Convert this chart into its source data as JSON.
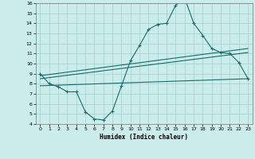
{
  "bg_color": "#caecea",
  "grid_color": "#aad4d0",
  "line_color": "#1a6b6b",
  "xlabel": "Humidex (Indice chaleur)",
  "xlim": [
    -0.5,
    23.5
  ],
  "ylim": [
    4,
    16
  ],
  "yticks": [
    4,
    5,
    6,
    7,
    8,
    9,
    10,
    11,
    12,
    13,
    14,
    15,
    16
  ],
  "xticks": [
    0,
    1,
    2,
    3,
    4,
    5,
    6,
    7,
    8,
    9,
    10,
    11,
    12,
    13,
    14,
    15,
    16,
    17,
    18,
    19,
    20,
    21,
    22,
    23
  ],
  "curve1_x": [
    0,
    1,
    2,
    3,
    4,
    5,
    6,
    7,
    8,
    9,
    10,
    11,
    12,
    13,
    14,
    15,
    16,
    17,
    18,
    19,
    20,
    21,
    22,
    23
  ],
  "curve1_y": [
    9.0,
    8.0,
    7.7,
    7.2,
    7.2,
    5.2,
    4.5,
    4.4,
    5.3,
    7.8,
    10.3,
    11.8,
    13.4,
    13.9,
    14.0,
    15.8,
    16.5,
    14.0,
    12.8,
    11.5,
    11.1,
    11.0,
    10.1,
    8.5
  ],
  "line2_x": [
    0,
    23
  ],
  "line2_y": [
    8.8,
    11.5
  ],
  "line3_x": [
    0,
    23
  ],
  "line3_y": [
    8.5,
    11.1
  ],
  "line4_x": [
    0,
    23
  ],
  "line4_y": [
    7.8,
    8.5
  ]
}
